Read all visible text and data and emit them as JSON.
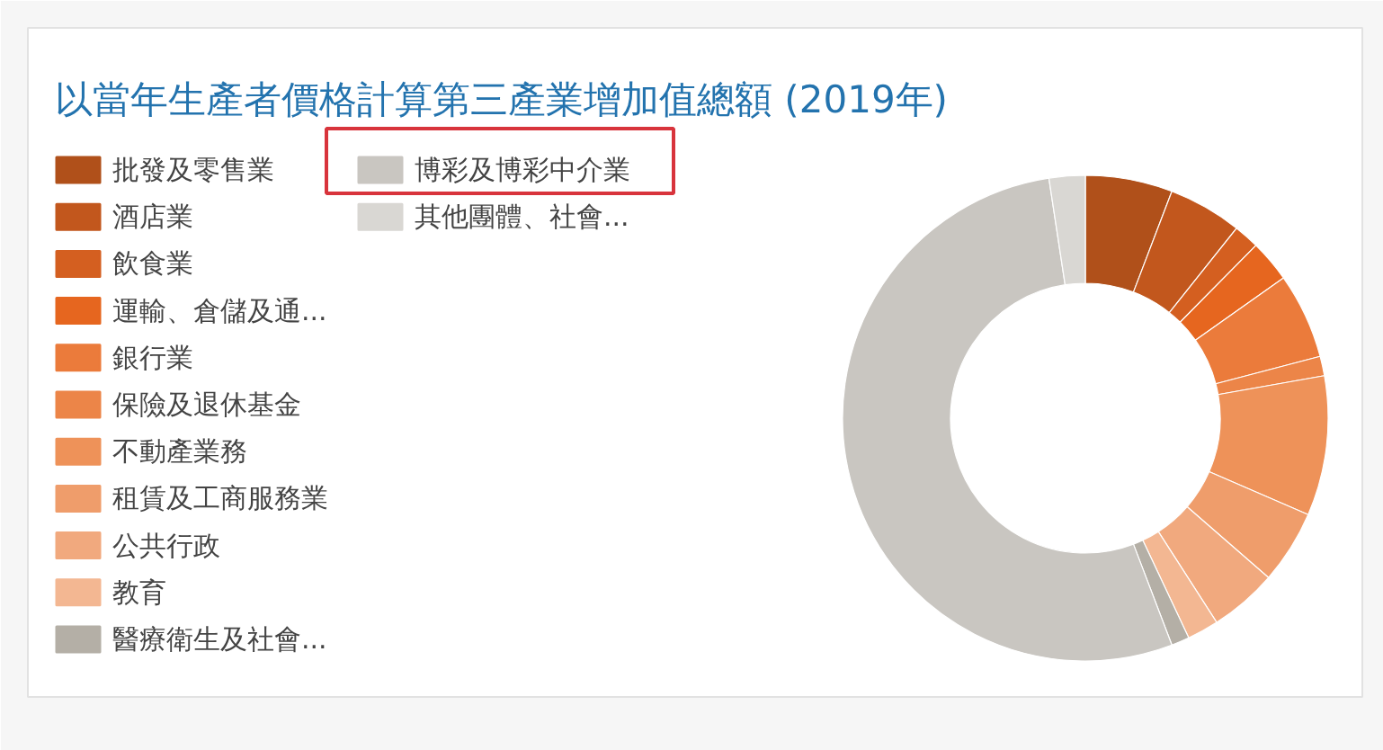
{
  "chart_data": {
    "type": "donut",
    "title": "以當年生產者價格計算第三產業增加值總額 (2019年)",
    "categories": [
      "批發及零售業",
      "酒店業",
      "飲食業",
      "運輸、倉儲及通...",
      "銀行業",
      "保險及退休基金",
      "不動產業務",
      "租賃及工商服務業",
      "公共行政",
      "教育",
      "醫療衛生及社會...",
      "博彩及博彩中介業",
      "其他團體、社會..."
    ],
    "values": [
      5.8,
      4.9,
      1.7,
      2.8,
      5.7,
      1.3,
      9.3,
      4.9,
      4.5,
      2.1,
      1.2,
      53.4,
      2.4
    ],
    "colors": [
      "#b0501a",
      "#c2571d",
      "#d45f20",
      "#e6661f",
      "#eb7b3b",
      "#ec8548",
      "#ee9259",
      "#ef9d6b",
      "#f1a97e",
      "#f3b792",
      "#b4afa6",
      "#c9c6c1",
      "#d9d7d3"
    ],
    "legend": "left"
  }
}
